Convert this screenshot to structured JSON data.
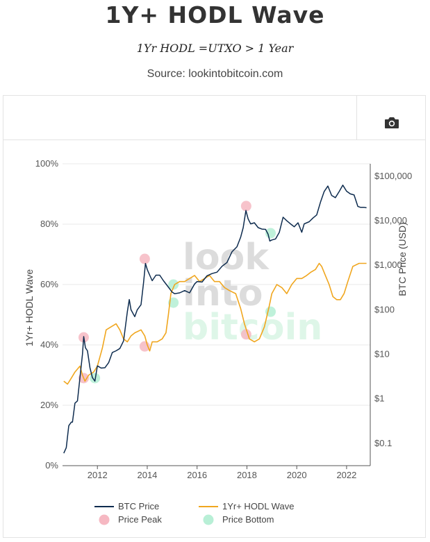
{
  "header": {
    "title": "1Y+ HODL Wave",
    "subtitle": "1Yr HODL =UTXO > 1 Year",
    "source": "Source: lookintobitcoin.com"
  },
  "toolbar": {
    "camera_icon": "camera-icon"
  },
  "watermark": {
    "lines": [
      "look",
      "into",
      "bitcoin"
    ]
  },
  "colors": {
    "btc_price": "#0d2b4e",
    "hodl_wave": "#f0a61e",
    "price_peak": "#f6b8c2",
    "price_bottom": "#b8efd6",
    "grid": "#e9e9e9"
  },
  "chart_data": {
    "type": "line",
    "x_axis": {
      "ticks": [
        "2012",
        "2014",
        "2016",
        "2018",
        "2020",
        "2022"
      ],
      "range": [
        2010.6,
        2022.95
      ]
    },
    "y_axis_left": {
      "title": "1Yr+ HODL Wave",
      "ticks": [
        "0%",
        "20%",
        "40%",
        "60%",
        "80%",
        "100%"
      ],
      "range": [
        0,
        100
      ]
    },
    "y_axis_right": {
      "title": "BTC Price (USD)",
      "scale": "log",
      "ticks": [
        "$0.1",
        "$1",
        "$10",
        "$100",
        "$1,000",
        "$10,000",
        "$100,000"
      ],
      "range": [
        0.0316,
        190000
      ]
    },
    "grid": true,
    "legend_position": "bottom",
    "series": [
      {
        "name": "BTC Price",
        "axis": "right",
        "points": [
          [
            2010.65,
            0.06
          ],
          [
            2010.75,
            0.08
          ],
          [
            2010.85,
            0.25
          ],
          [
            2010.95,
            0.3
          ],
          [
            2011.0,
            0.3
          ],
          [
            2011.1,
            0.8
          ],
          [
            2011.2,
            0.9
          ],
          [
            2011.3,
            3
          ],
          [
            2011.4,
            10
          ],
          [
            2011.45,
            25
          ],
          [
            2011.52,
            14
          ],
          [
            2011.6,
            12
          ],
          [
            2011.7,
            5
          ],
          [
            2011.8,
            3
          ],
          [
            2011.9,
            2.5
          ],
          [
            2012.0,
            5.5
          ],
          [
            2012.15,
            4.9
          ],
          [
            2012.3,
            5
          ],
          [
            2012.45,
            6.5
          ],
          [
            2012.6,
            11
          ],
          [
            2012.75,
            12
          ],
          [
            2012.9,
            13.5
          ],
          [
            2013.05,
            20
          ],
          [
            2013.2,
            90
          ],
          [
            2013.28,
            170
          ],
          [
            2013.35,
            100
          ],
          [
            2013.5,
            70
          ],
          [
            2013.6,
            100
          ],
          [
            2013.75,
            130
          ],
          [
            2013.85,
            400
          ],
          [
            2013.93,
            1100
          ],
          [
            2014.0,
            800
          ],
          [
            2014.1,
            600
          ],
          [
            2014.2,
            450
          ],
          [
            2014.35,
            600
          ],
          [
            2014.5,
            600
          ],
          [
            2014.65,
            450
          ],
          [
            2014.8,
            350
          ],
          [
            2015.0,
            250
          ],
          [
            2015.1,
            230
          ],
          [
            2015.3,
            240
          ],
          [
            2015.5,
            270
          ],
          [
            2015.7,
            240
          ],
          [
            2015.9,
            380
          ],
          [
            2016.0,
            430
          ],
          [
            2016.2,
            420
          ],
          [
            2016.4,
            580
          ],
          [
            2016.6,
            650
          ],
          [
            2016.8,
            700
          ],
          [
            2017.0,
            950
          ],
          [
            2017.2,
            1150
          ],
          [
            2017.4,
            2000
          ],
          [
            2017.6,
            2600
          ],
          [
            2017.75,
            4300
          ],
          [
            2017.85,
            7000
          ],
          [
            2017.96,
            17000
          ],
          [
            2018.05,
            11000
          ],
          [
            2018.15,
            8500
          ],
          [
            2018.3,
            9000
          ],
          [
            2018.45,
            7000
          ],
          [
            2018.6,
            6500
          ],
          [
            2018.75,
            6400
          ],
          [
            2018.85,
            5000
          ],
          [
            2018.92,
            3500
          ],
          [
            2019.0,
            3700
          ],
          [
            2019.15,
            3900
          ],
          [
            2019.3,
            5500
          ],
          [
            2019.45,
            12000
          ],
          [
            2019.6,
            10000
          ],
          [
            2019.75,
            8500
          ],
          [
            2019.9,
            7300
          ],
          [
            2020.05,
            9000
          ],
          [
            2020.2,
            5500
          ],
          [
            2020.3,
            8500
          ],
          [
            2020.5,
            9500
          ],
          [
            2020.65,
            11500
          ],
          [
            2020.8,
            13500
          ],
          [
            2020.95,
            26000
          ],
          [
            2021.1,
            45000
          ],
          [
            2021.25,
            60000
          ],
          [
            2021.4,
            37000
          ],
          [
            2021.55,
            33000
          ],
          [
            2021.7,
            45000
          ],
          [
            2021.85,
            63000
          ],
          [
            2022.0,
            46000
          ],
          [
            2022.15,
            40000
          ],
          [
            2022.3,
            38000
          ],
          [
            2022.45,
            21000
          ],
          [
            2022.55,
            20000
          ],
          [
            2022.7,
            20000
          ],
          [
            2022.8,
            19500
          ]
        ]
      },
      {
        "name": "1Yr+ HODL Wave",
        "axis": "left",
        "points": [
          [
            2010.65,
            28
          ],
          [
            2010.8,
            27
          ],
          [
            2010.95,
            29
          ],
          [
            2011.1,
            31
          ],
          [
            2011.3,
            33
          ],
          [
            2011.4,
            30
          ],
          [
            2011.5,
            28
          ],
          [
            2011.65,
            30
          ],
          [
            2011.85,
            31
          ],
          [
            2012.0,
            33
          ],
          [
            2012.2,
            39
          ],
          [
            2012.35,
            45
          ],
          [
            2012.55,
            46
          ],
          [
            2012.75,
            47
          ],
          [
            2012.9,
            45
          ],
          [
            2013.05,
            42
          ],
          [
            2013.2,
            41
          ],
          [
            2013.35,
            43
          ],
          [
            2013.5,
            44
          ],
          [
            2013.75,
            45
          ],
          [
            2013.9,
            43
          ],
          [
            2014.0,
            40
          ],
          [
            2014.1,
            38
          ],
          [
            2014.2,
            41
          ],
          [
            2014.4,
            41
          ],
          [
            2014.6,
            42
          ],
          [
            2014.75,
            44
          ],
          [
            2014.85,
            50
          ],
          [
            2014.95,
            57
          ],
          [
            2015.1,
            60
          ],
          [
            2015.3,
            61
          ],
          [
            2015.5,
            61
          ],
          [
            2015.7,
            62
          ],
          [
            2015.9,
            63
          ],
          [
            2016.1,
            61
          ],
          [
            2016.3,
            62
          ],
          [
            2016.5,
            63
          ],
          [
            2016.7,
            61
          ],
          [
            2016.9,
            61
          ],
          [
            2017.1,
            59
          ],
          [
            2017.3,
            58
          ],
          [
            2017.55,
            57
          ],
          [
            2017.75,
            52
          ],
          [
            2017.9,
            47
          ],
          [
            2018.1,
            42
          ],
          [
            2018.3,
            41
          ],
          [
            2018.5,
            42
          ],
          [
            2018.7,
            46
          ],
          [
            2018.9,
            53
          ],
          [
            2019.0,
            57
          ],
          [
            2019.2,
            60
          ],
          [
            2019.4,
            59
          ],
          [
            2019.6,
            57
          ],
          [
            2019.8,
            60
          ],
          [
            2020.0,
            62
          ],
          [
            2020.2,
            62
          ],
          [
            2020.4,
            63
          ],
          [
            2020.55,
            64
          ],
          [
            2020.75,
            65
          ],
          [
            2020.9,
            67
          ],
          [
            2021.0,
            66
          ],
          [
            2021.15,
            63
          ],
          [
            2021.3,
            60
          ],
          [
            2021.45,
            56
          ],
          [
            2021.6,
            55
          ],
          [
            2021.75,
            55
          ],
          [
            2021.9,
            57
          ],
          [
            2022.05,
            61
          ],
          [
            2022.25,
            66
          ],
          [
            2022.5,
            67
          ],
          [
            2022.8,
            67
          ]
        ]
      },
      {
        "name": "Price Peak",
        "axis": "left",
        "markers": [
          [
            2011.45,
            42.5
          ],
          [
            2011.45,
            29
          ],
          [
            2013.9,
            68.5
          ],
          [
            2013.9,
            39.5
          ],
          [
            2017.97,
            86
          ],
          [
            2017.97,
            43.5
          ]
        ]
      },
      {
        "name": "Price Bottom",
        "axis": "left",
        "markers": [
          [
            2011.9,
            29
          ],
          [
            2015.05,
            60
          ],
          [
            2015.05,
            54
          ],
          [
            2018.95,
            77
          ],
          [
            2018.95,
            51
          ]
        ]
      }
    ]
  },
  "legend": {
    "items": [
      "BTC Price",
      "1Yr+ HODL Wave",
      "Price Peak",
      "Price Bottom"
    ]
  }
}
